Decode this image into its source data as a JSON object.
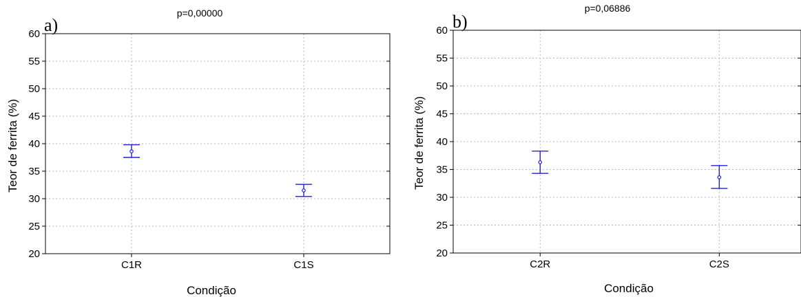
{
  "chart_data": [
    {
      "type": "scatter",
      "panel_label": "a)",
      "title": "p=0,00000",
      "xlabel": "Condição",
      "ylabel": "Teor de ferrita (%)",
      "categories": [
        "C1R",
        "C1S"
      ],
      "means": [
        38.6,
        31.5
      ],
      "upper": [
        39.8,
        32.6
      ],
      "lower": [
        37.5,
        30.4
      ],
      "ylim": [
        20,
        60
      ],
      "yticks": [
        "20",
        "25",
        "30",
        "35",
        "40",
        "45",
        "50",
        "55",
        "60"
      ],
      "grid": true
    },
    {
      "type": "scatter",
      "panel_label": "b)",
      "title": "p=0,06886",
      "xlabel": "Condição",
      "ylabel": "Teor de ferrita (%)",
      "categories": [
        "C2R",
        "C2S"
      ],
      "means": [
        36.3,
        33.6
      ],
      "upper": [
        38.3,
        35.7
      ],
      "lower": [
        34.3,
        31.6
      ],
      "ylim": [
        20,
        60
      ],
      "yticks": [
        "20",
        "25",
        "30",
        "35",
        "40",
        "45",
        "50",
        "55",
        "60"
      ],
      "grid": true
    }
  ]
}
